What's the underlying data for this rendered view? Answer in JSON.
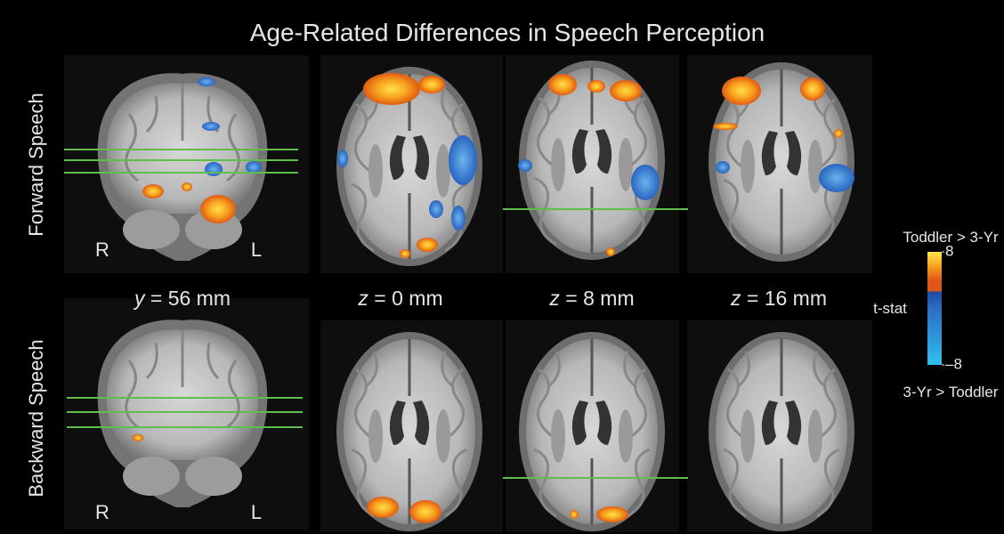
{
  "title": "Age-Related Differences in Speech Perception",
  "rows": [
    "Forward Speech",
    "Backward Speech"
  ],
  "hemispheres": {
    "right": "R",
    "left": "L"
  },
  "slices": [
    {
      "axis": "y",
      "rest": " = 56 mm"
    },
    {
      "axis": "z",
      "rest": " = 0 mm"
    },
    {
      "axis": "z",
      "rest": " = 8 mm"
    },
    {
      "axis": "z",
      "rest": " = 16 mm"
    }
  ],
  "colorbar": {
    "top_label": "Toddler > 3-Yr",
    "title": "t-stat",
    "bottom_label": "3-Yr > Toddler",
    "ticks": [
      8,
      {
        "value": -8,
        "label": "–8"
      }
    ]
  }
}
